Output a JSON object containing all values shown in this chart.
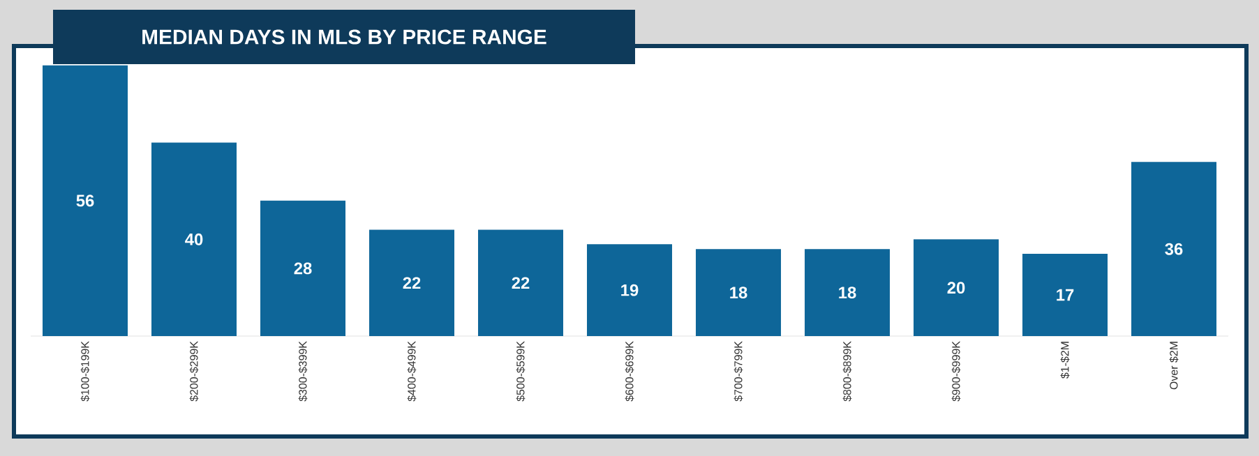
{
  "chart_data": {
    "type": "bar",
    "title": "MEDIAN DAYS IN MLS BY PRICE RANGE",
    "categories": [
      "$100-$199K",
      "$200-$299K",
      "$300-$399K",
      "$400-$499K",
      "$500-$599K",
      "$600-$699K",
      "$700-$799K",
      "$800-$899K",
      "$900-$999K",
      "$1-$2M",
      "Over $2M"
    ],
    "values": [
      56,
      40,
      28,
      22,
      22,
      19,
      18,
      18,
      20,
      17,
      36
    ],
    "color": "#0e6699",
    "data_labels": true,
    "tick_labels": "x"
  }
}
